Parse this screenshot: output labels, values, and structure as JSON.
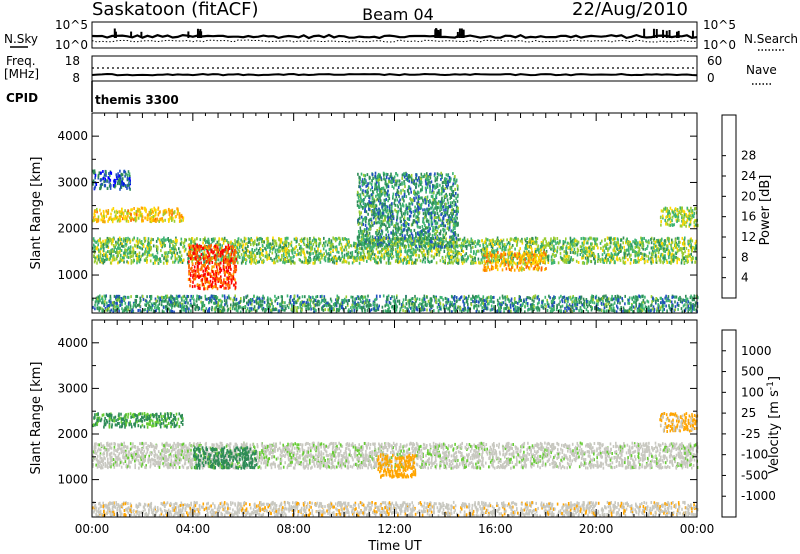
{
  "header": {
    "station": "Saskatoon (fitACF)",
    "beam": "Beam 04",
    "date": "22/Aug/2010"
  },
  "summary": {
    "nsky_label": "N.Sky",
    "nsearch_label": "N.Search",
    "count_tick_high": "10^5",
    "count_tick_low": "10^0",
    "freq_label_line1": "Freq.",
    "freq_label_line2": "[MHz]",
    "freq_ticks": [
      "18",
      "8"
    ],
    "nave_label": "Nave",
    "nave_ticks": [
      "60",
      "0"
    ],
    "cpid_label": "CPID",
    "cpid_value": "themis 3300"
  },
  "colors": {
    "power_scale": [
      "#0000ff",
      "#1f4fbf",
      "#2e8b57",
      "#3cb371",
      "#9acd32",
      "#ffd700",
      "#ffa500",
      "#ff6600",
      "#ff0000"
    ],
    "velocity_scale": [
      "#0000cc",
      "#1f4fbf",
      "#2e8b57",
      "#66cc33",
      "#c8c8c0",
      "#c8c8c0",
      "#ffa500",
      "#ff6600",
      "#ff0000"
    ],
    "ground_scatter": "#c8c8c0"
  },
  "chart_data": [
    {
      "type": "heatmap",
      "title": "",
      "xlabel": "",
      "ylabel": "Slant Range [km]",
      "colorbar_label": "Power [dB]",
      "colorbar_ticks": [
        "4",
        "8",
        "12",
        "16",
        "20",
        "24",
        "28"
      ],
      "x_ticks": [
        "00:00",
        "04:00",
        "08:00",
        "12:00",
        "16:00",
        "20:00",
        "00:00"
      ],
      "y_ticks": [
        "1000",
        "2000",
        "3000",
        "4000"
      ],
      "xlim_hours": [
        0,
        24
      ],
      "ylim_km": [
        180,
        4500
      ],
      "features": [
        {
          "name": "band",
          "t0": 0.0,
          "t1": 24.0,
          "r0": 1250,
          "r1": 1800,
          "value": 14
        },
        {
          "name": "intense-patch",
          "t0": 3.8,
          "t1": 5.7,
          "r0": 700,
          "r1": 1650,
          "value": 28
        },
        {
          "name": "upper-band",
          "t0": 0.0,
          "t1": 3.6,
          "r0": 2150,
          "r1": 2450,
          "value": 20
        },
        {
          "name": "near-range",
          "t0": 0.0,
          "t1": 24.0,
          "r0": 200,
          "r1": 550,
          "value": 10
        },
        {
          "name": "far-range",
          "t0": 0.0,
          "t1": 1.5,
          "r0": 2850,
          "r1": 3250,
          "value": 6
        },
        {
          "name": "diagonal",
          "t0": 10.5,
          "t1": 14.5,
          "r0": 1600,
          "r1": 3200,
          "value": 10
        },
        {
          "name": "band-dip",
          "t0": 15.5,
          "t1": 18.0,
          "r0": 1100,
          "r1": 1500,
          "value": 22
        },
        {
          "name": "late-patch",
          "t0": 22.5,
          "t1": 24.0,
          "r0": 2050,
          "r1": 2450,
          "value": 16
        }
      ]
    },
    {
      "type": "heatmap",
      "title": "",
      "xlabel": "Time UT",
      "ylabel": "Slant Range [km]",
      "colorbar_label": "Velocity [m s^-1]",
      "colorbar_ticks": [
        "1000",
        "500",
        "100",
        "25",
        "-25",
        "-100",
        "-500",
        "-1000"
      ],
      "x_ticks": [
        "00:00",
        "04:00",
        "08:00",
        "12:00",
        "16:00",
        "20:00",
        "00:00"
      ],
      "y_ticks": [
        "1000",
        "2000",
        "3000",
        "4000"
      ],
      "xlim_hours": [
        0,
        24
      ],
      "ylim_km": [
        180,
        4500
      ],
      "features": [
        {
          "name": "gs-band",
          "t0": 0.0,
          "t1": 24.0,
          "r0": 1250,
          "r1": 1800,
          "value": 0
        },
        {
          "name": "flow-patch",
          "t0": 4.0,
          "t1": 6.5,
          "r0": 1250,
          "r1": 1700,
          "value": 150
        },
        {
          "name": "neg-patch",
          "t0": 11.3,
          "t1": 12.8,
          "r0": 1050,
          "r1": 1550,
          "value": -300
        },
        {
          "name": "near-flow",
          "t0": 0.0,
          "t1": 24.0,
          "r0": 200,
          "r1": 500,
          "value": -60
        },
        {
          "name": "upper-flow",
          "t0": 0.0,
          "t1": 3.6,
          "r0": 2150,
          "r1": 2450,
          "value": 120
        },
        {
          "name": "late-flow",
          "t0": 22.5,
          "t1": 24.0,
          "r0": 2050,
          "r1": 2450,
          "value": -120
        }
      ]
    }
  ]
}
